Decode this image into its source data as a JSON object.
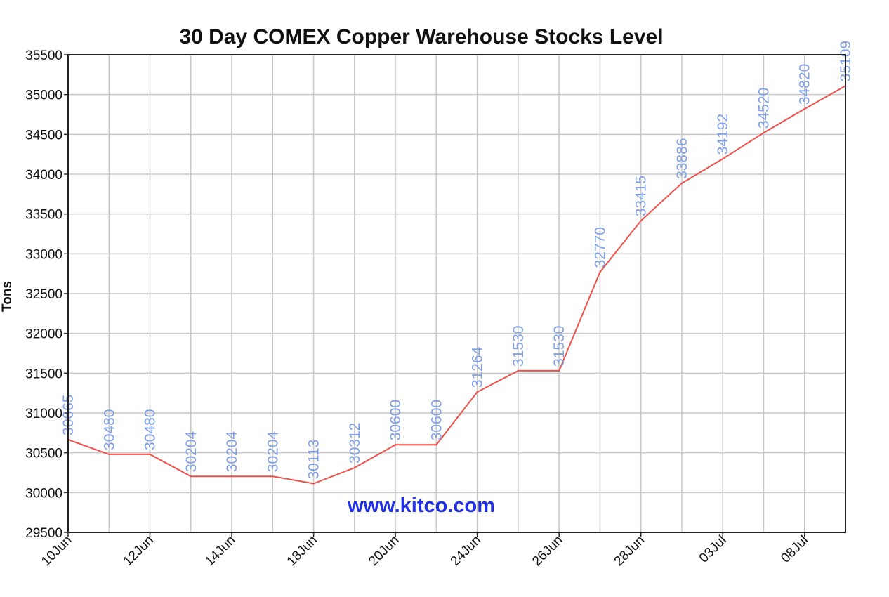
{
  "chart_data": {
    "type": "line",
    "title": "30 Day COMEX Copper Warehouse Stocks Level",
    "xlabel": "",
    "ylabel": "Tons",
    "ylim": [
      29500,
      35500
    ],
    "yticks": [
      29500,
      30000,
      30500,
      31000,
      31500,
      32000,
      32500,
      33000,
      33500,
      34000,
      34500,
      35000,
      35500
    ],
    "x_tick_labels": [
      "10Jun",
      "12Jun",
      "14Jun",
      "18Jun",
      "20Jun",
      "24Jun",
      "26Jun",
      "28Jun",
      "03Jul",
      "08Jul"
    ],
    "x_tick_every": 2,
    "grid": true,
    "series": [
      {
        "color": "#f0504a",
        "values": [
          30665,
          30480,
          30480,
          30204,
          30204,
          30204,
          30113,
          30312,
          30600,
          30600,
          31264,
          31530,
          31530,
          32770,
          33415,
          33886,
          34192,
          34520,
          34820,
          35109
        ]
      }
    ],
    "data_label_color": "#7f9fe6",
    "watermark": "www.kitco.com",
    "watermark_color": "#1f2fe6"
  }
}
